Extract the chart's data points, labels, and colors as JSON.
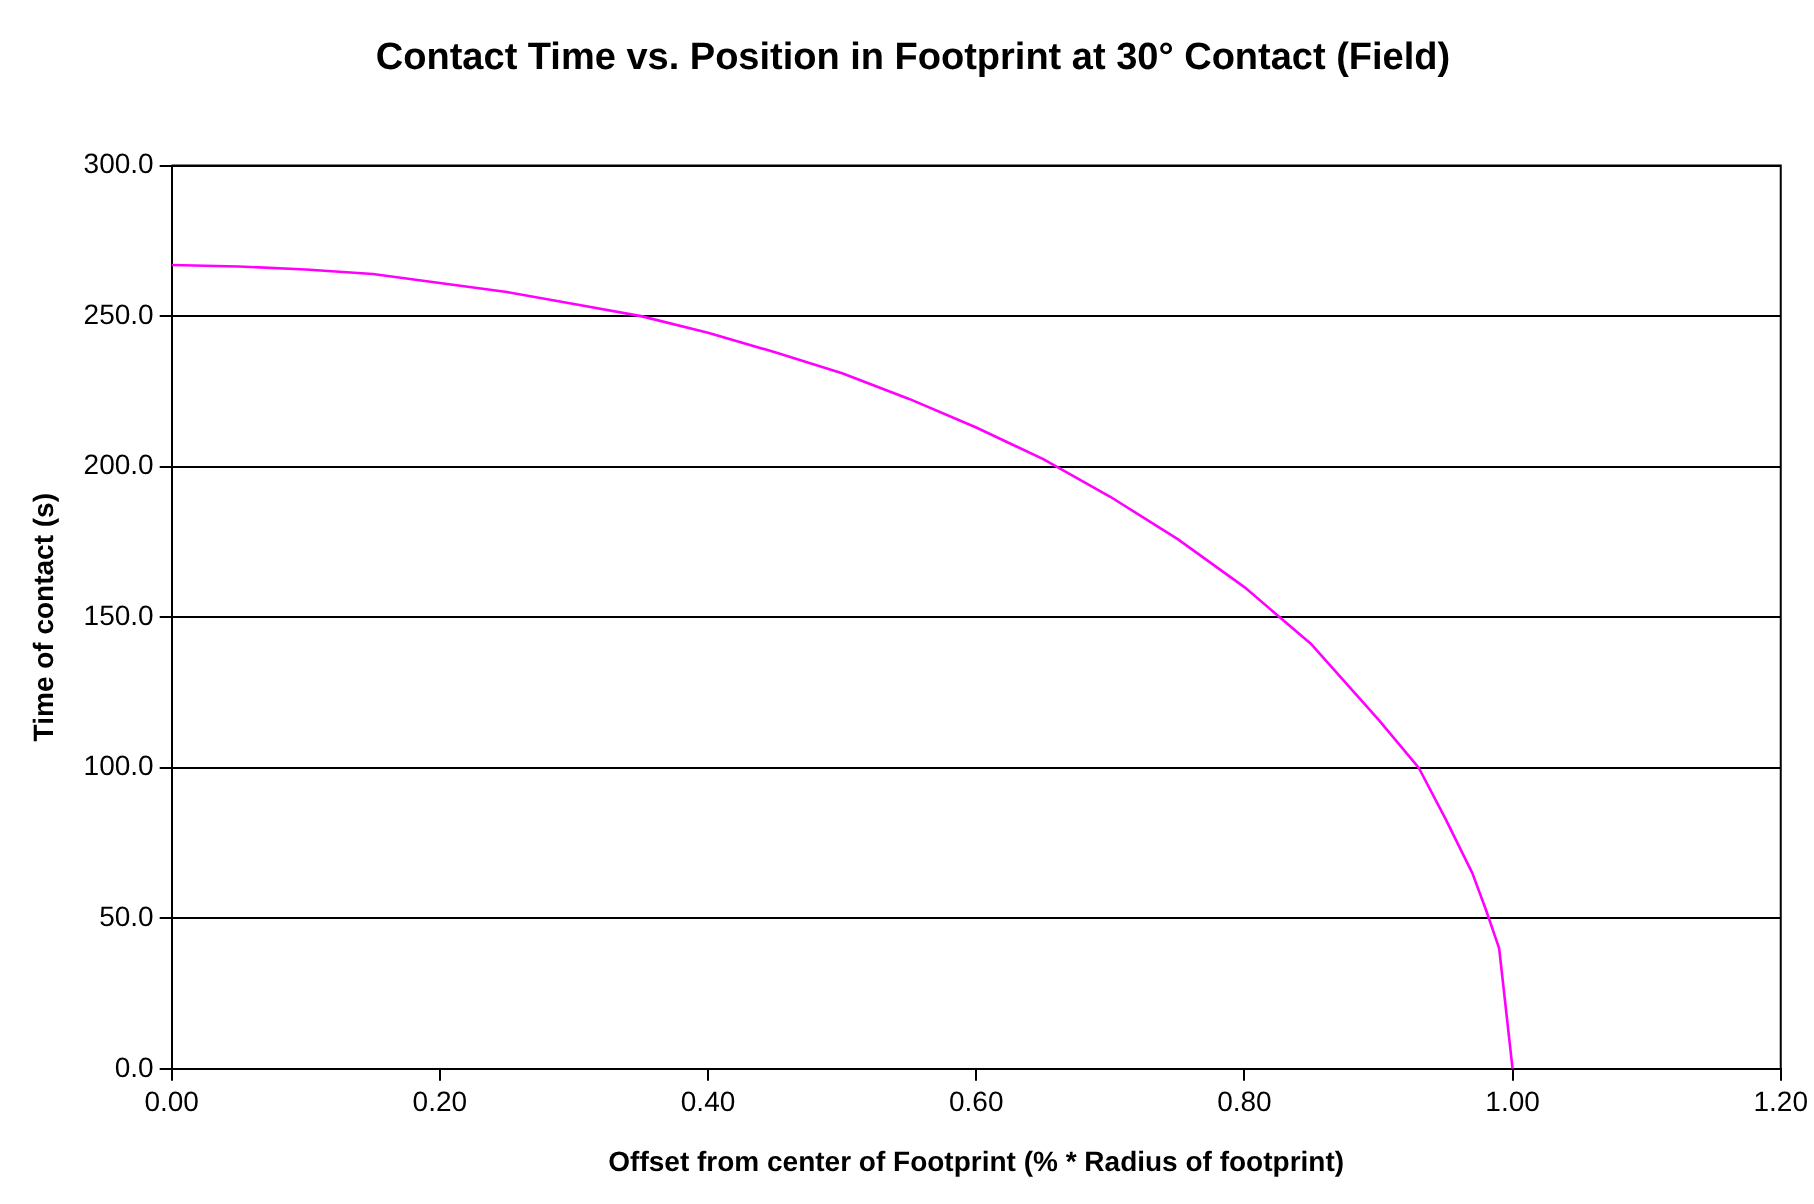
{
  "chart_data": {
    "type": "line",
    "title": "Contact Time vs. Position in Footprint at 30° Contact (Field)",
    "xlabel": "Offset from center of Footprint (% * Radius of footprint)",
    "ylabel": "Time of contact (s)",
    "x": [
      0,
      0.05,
      0.1,
      0.15,
      0.2,
      0.25,
      0.3,
      0.35,
      0.4,
      0.45,
      0.5,
      0.55,
      0.6,
      0.65,
      0.7,
      0.75,
      0.8,
      0.85,
      0.9,
      0.93,
      0.95,
      0.97,
      0.98,
      0.99,
      1.0
    ],
    "series": [
      {
        "color": "#ff00ff",
        "values": [
          267,
          266.5,
          265.5,
          264,
          261,
          258,
          254,
          250,
          244.5,
          238,
          231,
          222.5,
          213,
          202.5,
          190,
          176,
          160,
          141,
          116,
          100,
          83,
          65,
          53,
          40,
          0
        ]
      }
    ],
    "xlim": [
      0,
      1.2
    ],
    "xticks": [
      {
        "value": 0,
        "label": "0.00"
      },
      {
        "value": 0.2,
        "label": "0.20"
      },
      {
        "value": 0.4,
        "label": "0.40"
      },
      {
        "value": 0.6,
        "label": "0.60"
      },
      {
        "value": 0.8,
        "label": "0.80"
      },
      {
        "value": 1.0,
        "label": "1.00"
      },
      {
        "value": 1.2,
        "label": "1.20"
      }
    ],
    "ylim": [
      0,
      300
    ],
    "yticks": [
      {
        "value": 0,
        "label": "0.0"
      },
      {
        "value": 50,
        "label": "50.0"
      },
      {
        "value": 100,
        "label": "100.0"
      },
      {
        "value": 150,
        "label": "150.0"
      },
      {
        "value": 200,
        "label": "200.0"
      },
      {
        "value": 250,
        "label": "250.0"
      },
      {
        "value": 300,
        "label": "300.0"
      }
    ],
    "grid": "y",
    "legend": false,
    "marker": "none",
    "line_style": "solid"
  }
}
